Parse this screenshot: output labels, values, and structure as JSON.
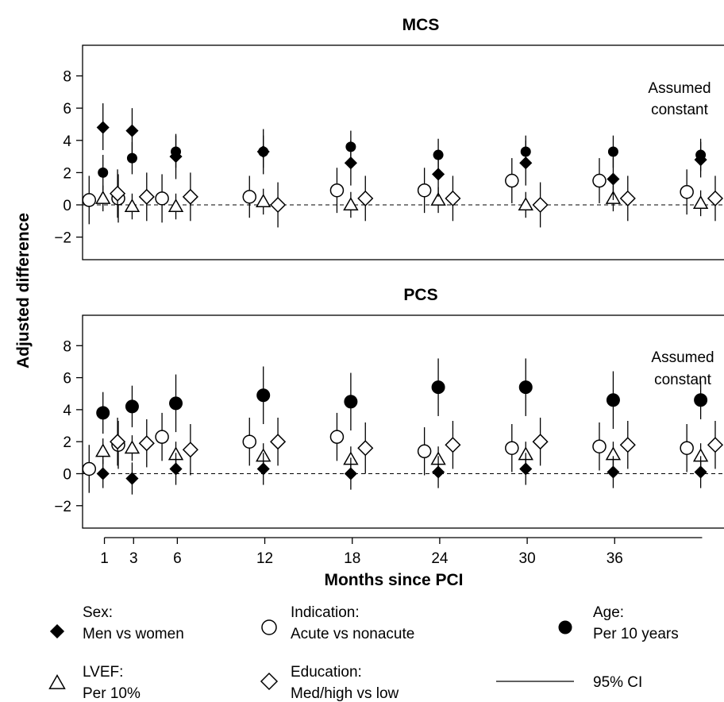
{
  "colors": {
    "ink": "#000000",
    "background": "#ffffff"
  },
  "chart_data": {
    "type": "scatter",
    "ylabel": "Adjusted difference",
    "xlabel": "Months since PCI",
    "x_ticks": [
      1,
      3,
      6,
      12,
      18,
      24,
      30,
      36
    ],
    "y_ticks": [
      -2,
      0,
      2,
      4,
      6,
      8
    ],
    "ylim": [
      -3.4,
      9.9
    ],
    "xlim": [
      -0.5,
      43.5
    ],
    "reference_line": 0,
    "series_keys": [
      "indication",
      "lvef",
      "sex",
      "age",
      "education"
    ],
    "offsets": {
      "indication": -1.05,
      "lvef": -0.1,
      "sex": -0.1,
      "age": -0.1,
      "education": 0.9
    },
    "legend": [
      {
        "marker": "diamond-filled",
        "line1": "Sex:",
        "line2": "Men vs women"
      },
      {
        "marker": "circle-open",
        "line1": "Indication:",
        "line2": "Acute vs nonacute"
      },
      {
        "marker": "circle-filled",
        "line1": "Age:",
        "line2": "Per 10 years"
      },
      {
        "marker": "triangle-open",
        "line1": "LVEF:",
        "line2": "Per 10%"
      },
      {
        "marker": "diamond-open",
        "line1": "Education:",
        "line2": "Med/high vs low"
      },
      {
        "marker": "line",
        "line1": "95% CI",
        "line2": ""
      }
    ],
    "panels": [
      {
        "id": "mcs",
        "title": "MCS",
        "note_line1": "Assumed",
        "note_line2": "constant",
        "marker_sizes": {
          "sex": 7,
          "age": 6,
          "indication": 8,
          "lvef": 8,
          "education": 9
        },
        "months": [
          1,
          3,
          6,
          12,
          18,
          24,
          30,
          36,
          42
        ],
        "series": {
          "sex": [
            [
              4.8,
              3.4,
              6.3
            ],
            [
              4.6,
              3.2,
              6.0
            ],
            [
              3.0,
              1.6,
              4.4
            ],
            [
              3.3,
              1.9,
              4.7
            ],
            [
              2.6,
              1.2,
              4.0
            ],
            [
              1.9,
              0.5,
              3.3
            ],
            [
              2.6,
              1.2,
              4.0
            ],
            [
              1.6,
              0.3,
              2.9
            ],
            [
              2.8,
              1.7,
              3.9
            ]
          ],
          "age": [
            [
              2.0,
              0.9,
              3.1
            ],
            [
              2.9,
              1.9,
              3.9
            ],
            [
              3.3,
              2.3,
              4.3
            ],
            [
              3.3,
              2.3,
              4.3
            ],
            [
              3.6,
              2.6,
              4.6
            ],
            [
              3.1,
              2.1,
              4.1
            ],
            [
              3.3,
              2.3,
              4.3
            ],
            [
              3.3,
              2.3,
              4.3
            ],
            [
              3.1,
              2.1,
              4.1
            ]
          ],
          "indication": [
            [
              0.3,
              -1.2,
              1.8
            ],
            [
              0.4,
              -1.1,
              1.9
            ],
            [
              0.4,
              -1.1,
              1.9
            ],
            [
              0.5,
              -0.8,
              1.8
            ],
            [
              0.9,
              -0.5,
              2.3
            ],
            [
              0.9,
              -0.5,
              2.3
            ],
            [
              1.5,
              0.1,
              2.9
            ],
            [
              1.5,
              0.1,
              2.9
            ],
            [
              0.8,
              -0.6,
              2.2
            ]
          ],
          "lvef": [
            [
              0.4,
              -0.4,
              1.2
            ],
            [
              -0.1,
              -0.9,
              0.7
            ],
            [
              -0.1,
              -0.9,
              0.7
            ],
            [
              0.2,
              -0.6,
              1.0
            ],
            [
              0.0,
              -0.8,
              0.8
            ],
            [
              0.3,
              -0.5,
              1.1
            ],
            [
              0.0,
              -0.8,
              0.8
            ],
            [
              0.4,
              -0.4,
              1.2
            ],
            [
              0.1,
              -0.7,
              0.9
            ]
          ],
          "education": [
            [
              0.7,
              -0.8,
              2.2
            ],
            [
              0.5,
              -1.0,
              2.0
            ],
            [
              0.5,
              -1.0,
              2.0
            ],
            [
              0.0,
              -1.4,
              1.4
            ],
            [
              0.4,
              -1.0,
              1.8
            ],
            [
              0.4,
              -1.0,
              1.8
            ],
            [
              0.0,
              -1.4,
              1.4
            ],
            [
              0.4,
              -1.0,
              1.8
            ],
            [
              0.4,
              -1.0,
              1.8
            ]
          ]
        }
      },
      {
        "id": "pcs",
        "title": "PCS",
        "note_line1": "Assumed",
        "note_line2": "constant",
        "marker_sizes": {
          "sex": 7,
          "age": 8,
          "indication": 8,
          "lvef": 8,
          "education": 9
        },
        "months": [
          1,
          3,
          6,
          12,
          18,
          24,
          30,
          36,
          42
        ],
        "series": {
          "sex": [
            [
              0.0,
              -0.9,
              0.9
            ],
            [
              -0.3,
              -1.3,
              0.7
            ],
            [
              0.3,
              -0.7,
              1.3
            ],
            [
              0.3,
              -0.7,
              1.3
            ],
            [
              0.0,
              -1.0,
              1.0
            ],
            [
              0.1,
              -0.9,
              1.1
            ],
            [
              0.3,
              -0.7,
              1.3
            ],
            [
              0.1,
              -0.9,
              1.1
            ],
            [
              0.1,
              -0.9,
              1.1
            ]
          ],
          "age": [
            [
              3.8,
              2.5,
              5.1
            ],
            [
              4.2,
              2.9,
              5.5
            ],
            [
              4.4,
              2.6,
              6.2
            ],
            [
              4.9,
              3.1,
              6.7
            ],
            [
              4.5,
              2.7,
              6.3
            ],
            [
              5.4,
              3.6,
              7.2
            ],
            [
              5.4,
              3.6,
              7.2
            ],
            [
              4.6,
              2.8,
              6.4
            ],
            [
              4.6,
              3.4,
              5.8
            ]
          ],
          "indication": [
            [
              0.3,
              -1.2,
              1.8
            ],
            [
              1.8,
              0.3,
              3.3
            ],
            [
              2.3,
              0.8,
              3.8
            ],
            [
              2.0,
              0.5,
              3.5
            ],
            [
              2.3,
              0.8,
              3.8
            ],
            [
              1.4,
              -0.1,
              2.9
            ],
            [
              1.6,
              0.1,
              3.1
            ],
            [
              1.7,
              0.2,
              3.2
            ],
            [
              1.6,
              0.1,
              3.1
            ]
          ],
          "lvef": [
            [
              1.4,
              0.6,
              2.2
            ],
            [
              1.6,
              0.8,
              2.4
            ],
            [
              1.2,
              0.4,
              2.0
            ],
            [
              1.1,
              0.3,
              1.9
            ],
            [
              0.9,
              0.1,
              1.7
            ],
            [
              0.9,
              0.1,
              1.7
            ],
            [
              1.2,
              0.4,
              2.0
            ],
            [
              1.2,
              0.4,
              2.0
            ],
            [
              1.1,
              0.3,
              1.9
            ]
          ],
          "education": [
            [
              2.0,
              0.5,
              3.5
            ],
            [
              1.9,
              0.4,
              3.4
            ],
            [
              1.5,
              -0.1,
              3.1
            ],
            [
              2.0,
              0.5,
              3.5
            ],
            [
              1.6,
              0.0,
              3.2
            ],
            [
              1.8,
              0.3,
              3.3
            ],
            [
              2.0,
              0.5,
              3.5
            ],
            [
              1.8,
              0.3,
              3.3
            ],
            [
              1.8,
              0.3,
              3.3
            ]
          ]
        }
      }
    ]
  }
}
